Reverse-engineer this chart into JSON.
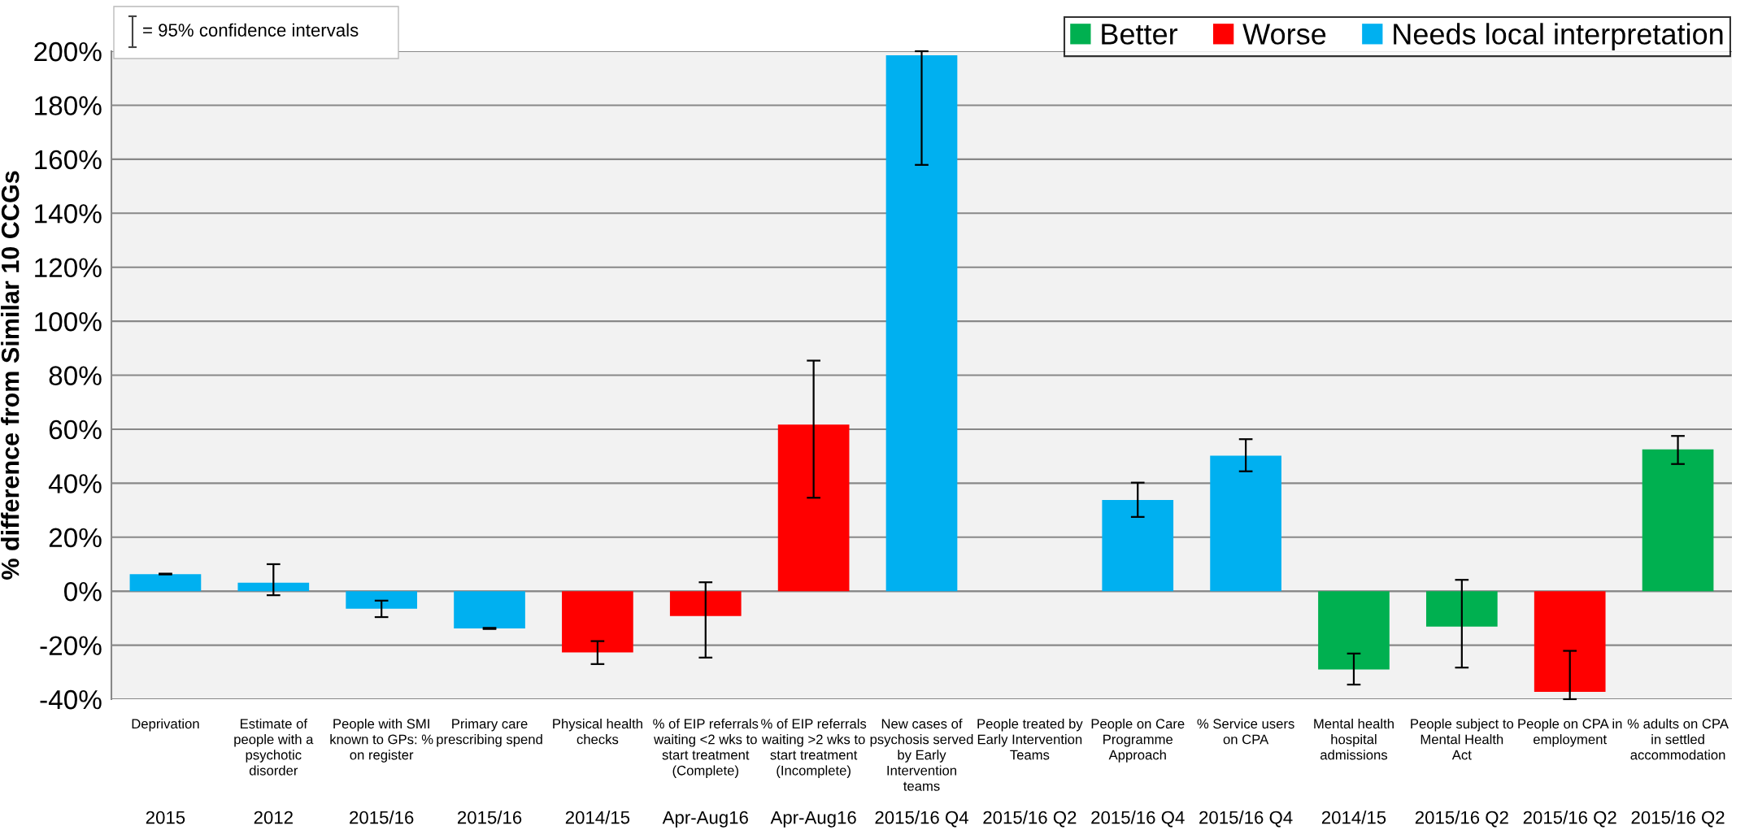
{
  "chart_data": {
    "type": "bar",
    "ylabel": "% difference from Similar 10 CCGs",
    "categories": [
      "Deprivation\n2015",
      "Estimate of\npeople with a\npsychotic\ndisorder\n2012",
      "People with SMI\nknown to GPs: %\non register\n2015/16",
      "Primary care\nprescribing spend\n2015/16",
      "Physical health\nchecks\n2014/15",
      "% of EIP referrals\nwaiting <2 wks to\nstart treatment\n(Complete)\nApr-Aug16",
      "% of EIP referrals\nwaiting >2 wks to\nstart treatment\n(Incomplete)\nApr-Aug16",
      "New cases of\npsychosis served\nby Early\nIntervention\nteams\n2015/16 Q4",
      "People treated by\nEarly Intervention\nTeams\n2015/16 Q2",
      "People on Care\nProgramme\nApproach\n2015/16 Q4",
      "% Service users\non CPA\n2015/16 Q4",
      "Mental health\nhospital\nadmissions\n2014/15",
      "People subject to\nMental Health\nAct\n2015/16 Q2",
      "People on CPA in\nemployment\n2015/16 Q2",
      "% adults on CPA\nin settled\naccommodation\n2015/16 Q2"
    ],
    "series": [
      {
        "name": "Better",
        "color": "#00b050",
        "values": [
          null,
          null,
          null,
          null,
          null,
          null,
          null,
          null,
          null,
          null,
          null,
          -29,
          -13.1,
          null,
          52.5
        ],
        "errors": [
          null,
          null,
          null,
          null,
          null,
          null,
          null,
          null,
          null,
          null,
          null,
          [
            -34.6,
            -23.1
          ],
          [
            -28.3,
            4.2
          ],
          null,
          [
            47.1,
            57.5
          ]
        ]
      },
      {
        "name": "Worse",
        "color": "#ff0000",
        "values": [
          null,
          null,
          null,
          null,
          -22.7,
          -9.2,
          61.7,
          null,
          null,
          null,
          null,
          null,
          null,
          -37.3,
          null
        ],
        "errors": [
          null,
          null,
          null,
          null,
          [
            -27,
            -18.5
          ],
          [
            -24.6,
            3.3
          ],
          [
            34.6,
            85.4
          ],
          null,
          null,
          null,
          null,
          null,
          null,
          [
            -40,
            -22.1
          ],
          null
        ]
      },
      {
        "name": "Needs local interpretation",
        "color": "#00b0f0",
        "values": [
          6.3,
          3.1,
          -6.5,
          -13.8,
          null,
          null,
          null,
          198.5,
          0,
          33.8,
          50.2,
          null,
          null,
          null,
          null
        ],
        "errors": [
          [
            6.2,
            6.5
          ],
          [
            -1.5,
            10
          ],
          [
            -9.6,
            -3.5
          ],
          [
            -14,
            -13.6
          ],
          null,
          null,
          null,
          [
            157.9,
            200
          ],
          null,
          [
            27.5,
            40.2
          ],
          [
            44.4,
            56.3
          ],
          null,
          null,
          null,
          null
        ]
      }
    ],
    "ylim": [
      -40,
      200
    ],
    "yticks": [
      {
        "value": -40,
        "label": "-40%"
      },
      {
        "value": -20,
        "label": "-20%"
      },
      {
        "value": 0,
        "label": "0%"
      },
      {
        "value": 20,
        "label": "20%"
      },
      {
        "value": 40,
        "label": "40%"
      },
      {
        "value": 60,
        "label": "60%"
      },
      {
        "value": 80,
        "label": "80%"
      },
      {
        "value": 100,
        "label": "100%"
      },
      {
        "value": 120,
        "label": "120%"
      },
      {
        "value": 140,
        "label": "140%"
      },
      {
        "value": 160,
        "label": "160%"
      },
      {
        "value": 180,
        "label": "180%"
      },
      {
        "value": 200,
        "label": "200%"
      }
    ],
    "grid": "y",
    "legend": "top right",
    "annotations": [
      "= 95% confidence intervals"
    ]
  }
}
